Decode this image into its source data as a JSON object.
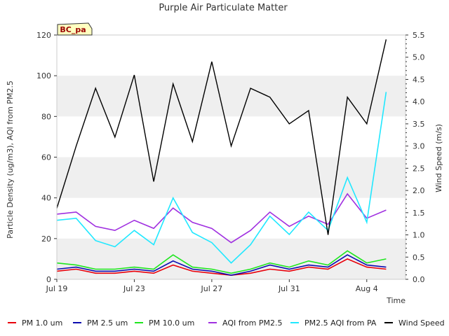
{
  "chart_data": {
    "type": "line",
    "title": "Purple Air Particulate Matter",
    "xlabel": "Time",
    "ylabel": "Particle Density (ug/m3), AQI from PM2.5",
    "y2label": "Wind Speed (m/s)",
    "site_label": "BC_pa",
    "xlim": [
      "2024-07-19",
      "2024-08-06"
    ],
    "ylim": [
      0,
      120
    ],
    "y2lim": [
      0,
      5.5
    ],
    "x_tick_labels": [
      "Jul 19",
      "Jul 23",
      "Jul 27",
      "Jul 31",
      "Aug 4"
    ],
    "x_tick_dates": [
      "2024-07-19",
      "2024-07-23",
      "2024-07-27",
      "2024-07-31",
      "2024-08-04"
    ],
    "y_ticks": [
      0,
      20,
      40,
      60,
      80,
      100,
      120
    ],
    "y2_ticks": [
      0.0,
      0.5,
      1.0,
      1.5,
      2.0,
      2.5,
      3.0,
      3.5,
      4.0,
      4.5,
      5.0,
      5.5
    ],
    "y2_tick_labels": [
      "0.0",
      "0.5",
      "1.0",
      "1.5",
      "2.0",
      "2.5",
      "3.0",
      "3.5",
      "4.0",
      "4.5",
      "5.0",
      "5.5"
    ],
    "grid": "horizontal bands",
    "band_color": "#efefef",
    "legend_position": "bottom",
    "x": [
      "2024-07-19",
      "2024-07-20",
      "2024-07-21",
      "2024-07-22",
      "2024-07-23",
      "2024-07-24",
      "2024-07-25",
      "2024-07-26",
      "2024-07-27",
      "2024-07-28",
      "2024-07-29",
      "2024-07-30",
      "2024-07-31",
      "2024-08-01",
      "2024-08-02",
      "2024-08-03",
      "2024-08-04",
      "2024-08-05"
    ],
    "series": [
      {
        "name": "PM 1.0 um",
        "axis": "left",
        "color": "#e8000b",
        "values": [
          4,
          5,
          3,
          3,
          4,
          3,
          7,
          4,
          3,
          2,
          3,
          5,
          4,
          6,
          5,
          10,
          6,
          5
        ]
      },
      {
        "name": "PM 2.5 um",
        "axis": "left",
        "color": "#0b0bb0",
        "values": [
          5,
          6,
          4,
          4,
          5,
          4,
          9,
          5,
          4,
          2,
          4,
          7,
          5,
          7,
          6,
          12,
          7,
          6
        ]
      },
      {
        "name": "PM 10.0 um",
        "axis": "left",
        "color": "#1ee61e",
        "values": [
          8,
          7,
          5,
          5,
          6,
          5,
          12,
          6,
          5,
          3,
          5,
          8,
          6,
          9,
          7,
          14,
          8,
          10
        ]
      },
      {
        "name": "AQI from PM2.5",
        "axis": "left",
        "color": "#a030e0",
        "values": [
          32,
          33,
          26,
          24,
          29,
          25,
          35,
          28,
          25,
          18,
          24,
          33,
          26,
          31,
          27,
          42,
          30,
          34
        ]
      },
      {
        "name": "PM2.5 AQI from PA",
        "axis": "left",
        "color": "#20e8ff",
        "values": [
          29,
          30,
          19,
          16,
          24,
          17,
          40,
          23,
          18,
          8,
          17,
          31,
          22,
          33,
          24,
          50,
          28,
          92
        ]
      },
      {
        "name": "Wind Speed",
        "axis": "right",
        "color": "#000000",
        "values": [
          1.6,
          3.0,
          4.3,
          3.2,
          4.6,
          2.2,
          4.4,
          3.1,
          4.9,
          3.0,
          4.3,
          4.1,
          3.5,
          3.8,
          1.0,
          4.1,
          3.5,
          5.4
        ]
      }
    ]
  }
}
